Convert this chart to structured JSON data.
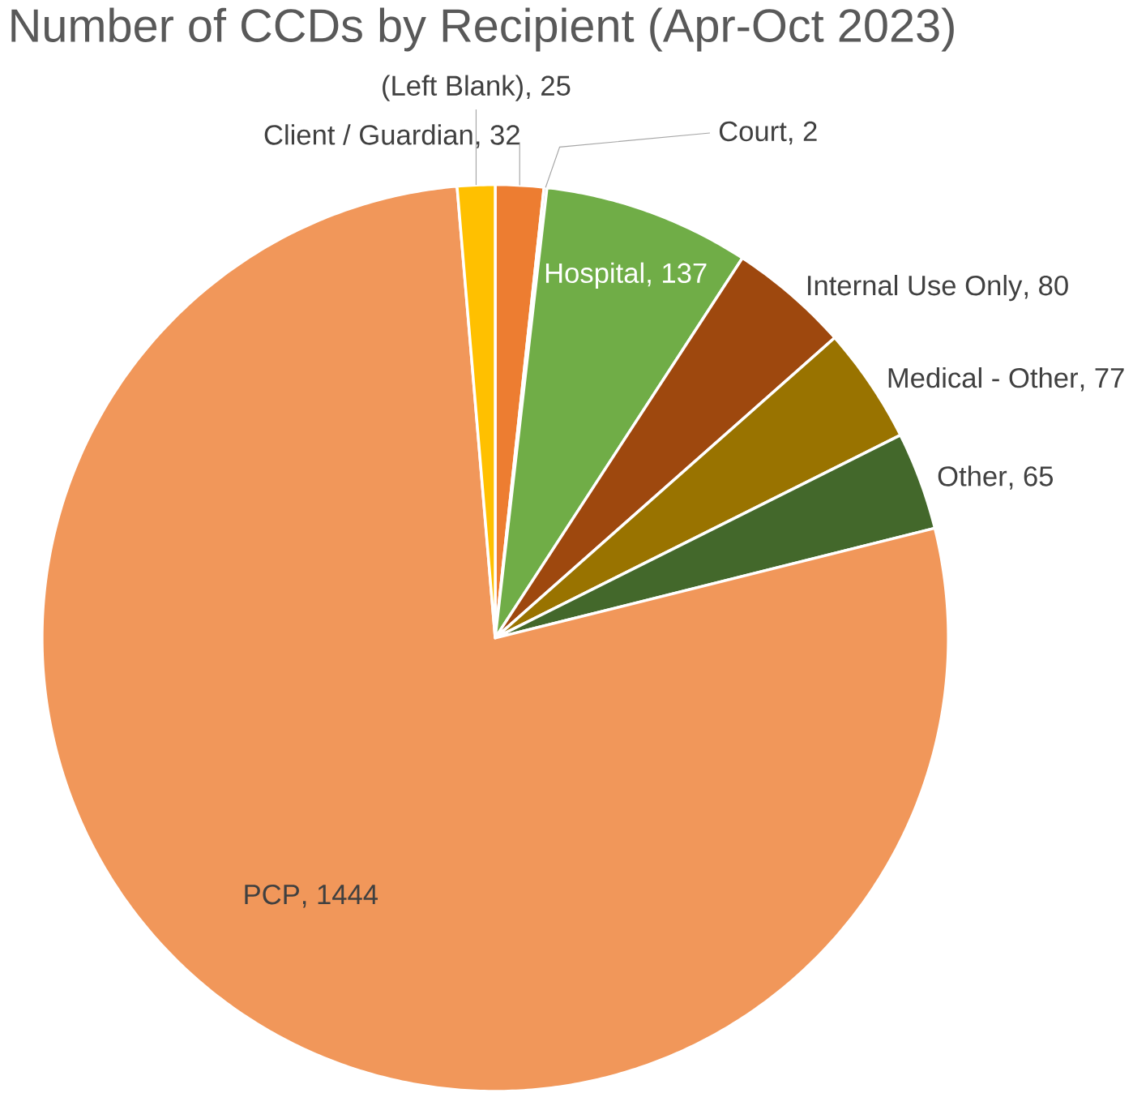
{
  "chart_data": {
    "type": "pie",
    "title": "Number of CCDs by Recipient (Apr-Oct 2023)",
    "categories": [
      "Client / Guardian",
      "Court",
      "Hospital",
      "Internal Use Only",
      "Medical - Other",
      "Other",
      "PCP",
      "(Left Blank)"
    ],
    "values": [
      32,
      2,
      137,
      80,
      77,
      65,
      1444,
      25
    ],
    "colors": [
      "#ed7d31",
      "#a5a5a5",
      "#70ad47",
      "#9e480e",
      "#997300",
      "#43682b",
      "#f1975a",
      "#ffc000"
    ],
    "value_labels": [
      ", 32",
      ", 2",
      ", 137",
      ", 80",
      ", 77",
      ", 65",
      ", 1444",
      ", 25"
    ],
    "legend": false
  }
}
